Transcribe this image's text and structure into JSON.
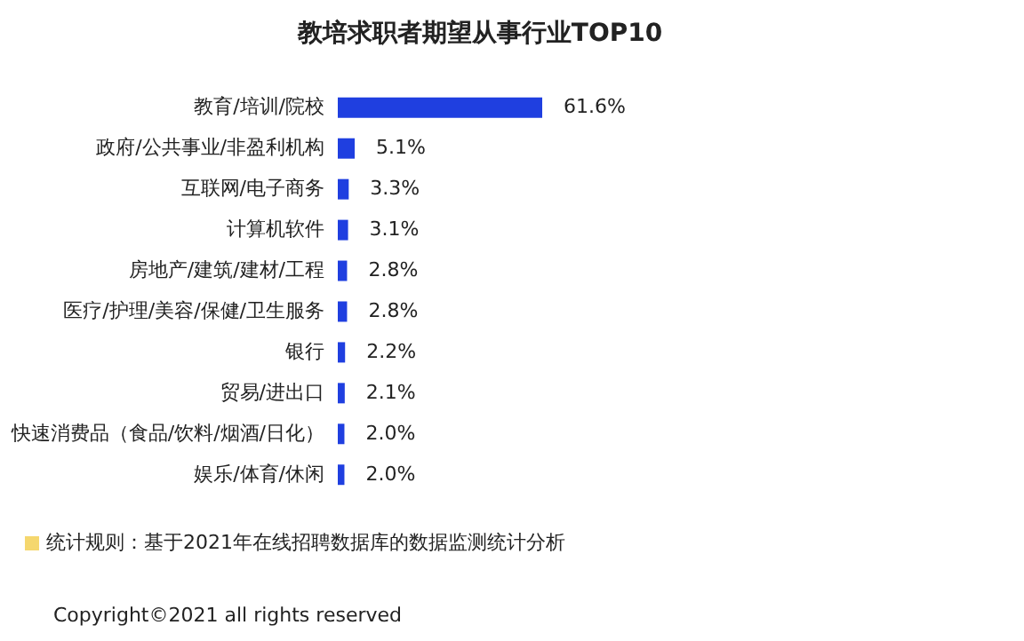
{
  "chart_data": {
    "type": "bar",
    "orientation": "horizontal",
    "title": "教培求职者期望从事行业TOP10",
    "categories": [
      "教育/培训/院校",
      "政府/公共事业/非盈利机构",
      "互联网/电子商务",
      "计算机软件",
      "房地产/建筑/建材/工程",
      "医疗/护理/美容/保健/卫生服务",
      "银行",
      "贸易/进出口",
      "快速消费品（食品/饮料/烟酒/日化）",
      "娱乐/体育/休闲"
    ],
    "values": [
      61.6,
      5.1,
      3.3,
      3.1,
      2.8,
      2.8,
      2.2,
      2.1,
      2.0,
      2.0
    ],
    "value_labels": [
      "61.6%",
      "5.1%",
      "3.3%",
      "3.1%",
      "2.8%",
      "2.8%",
      "2.2%",
      "2.1%",
      "2.0%",
      "2.0%"
    ],
    "color": "#1f3fe0",
    "annotations": [
      "统计规则：基于2021年在线招聘数据库的数据监测统计分析",
      "Copyright©2021 all rights reserved"
    ]
  }
}
